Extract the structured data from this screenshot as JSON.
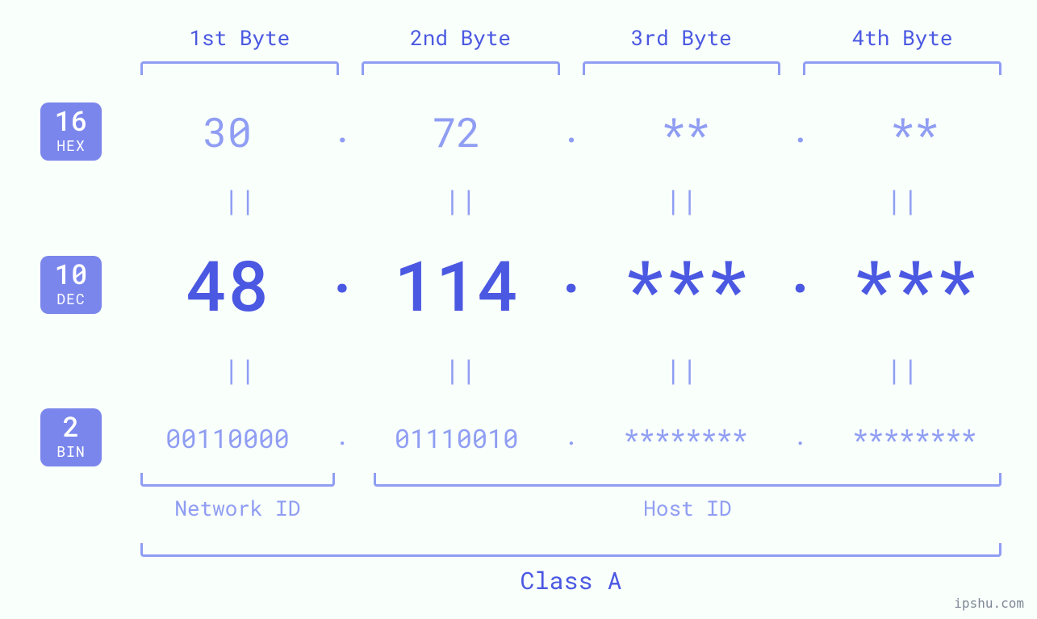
{
  "colors": {
    "background": "#f9fffb",
    "accent": "#4b58e2",
    "light": "#8f9df3",
    "badge_bg": "#7a86ec",
    "badge_text": "#ffffff"
  },
  "byte_headers": [
    "1st Byte",
    "2nd Byte",
    "3rd Byte",
    "4th Byte"
  ],
  "badges": {
    "hex": {
      "num": "16",
      "label": "HEX"
    },
    "dec": {
      "num": "10",
      "label": "DEC"
    },
    "bin": {
      "num": "2",
      "label": "BIN"
    }
  },
  "hex": [
    "30",
    "72",
    "**",
    "**"
  ],
  "dec": [
    "48",
    "114",
    "***",
    "***"
  ],
  "bin": [
    "00110000",
    "01110010",
    "********",
    "********"
  ],
  "separators": {
    "dot": "."
  },
  "equals": "||",
  "bottom": {
    "network_id": "Network ID",
    "host_id": "Host ID",
    "class": "Class A"
  },
  "attribution": "ipshu.com",
  "style": {
    "header_fontsize": 26,
    "hex_fontsize": 50,
    "dec_fontsize": 86,
    "bin_fontsize": 32,
    "equals_fontsize": 34,
    "bracket_color": "#8f9df3",
    "bracket_thickness": 3
  }
}
